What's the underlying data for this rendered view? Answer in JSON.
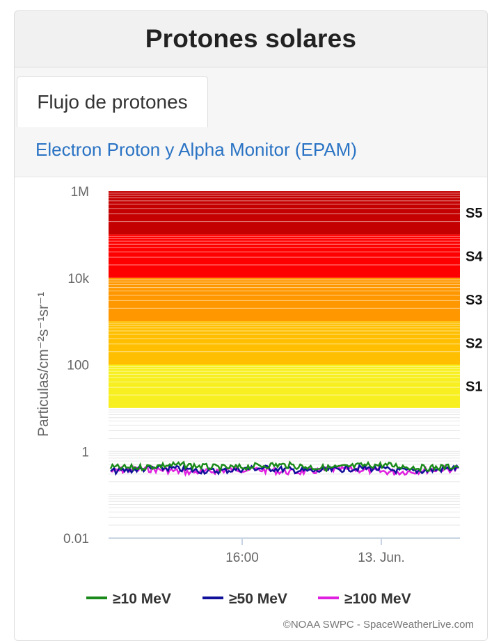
{
  "header": {
    "title": "Protones solares"
  },
  "tabs": [
    {
      "label": "Flujo de protones",
      "active": true
    }
  ],
  "source_link": "Electron Proton y Alpha Monitor (EPAM)",
  "credit": "©NOAA SWPC - SpaceWeatherLive.com",
  "chart_data": {
    "type": "line",
    "yscale": "log",
    "ylim": [
      0.01,
      1000000
    ],
    "yticks": [
      {
        "value": 1000000,
        "label": "1M"
      },
      {
        "value": 10000,
        "label": "10k"
      },
      {
        "value": 100,
        "label": "100"
      },
      {
        "value": 1,
        "label": "1"
      },
      {
        "value": 0.01,
        "label": "0.01"
      }
    ],
    "ylabel": "Particulas/cm⁻²s⁻¹sr⁻¹",
    "xticks": [
      "16:00",
      "13. Jun."
    ],
    "grid": true,
    "legend_position": "bottom",
    "storm_levels": [
      {
        "label": "S5",
        "from": 100000,
        "to": 1000000,
        "color": "#c40000"
      },
      {
        "label": "S4",
        "from": 10000,
        "to": 100000,
        "color": "#ff0000"
      },
      {
        "label": "S3",
        "from": 1000,
        "to": 10000,
        "color": "#ff9800"
      },
      {
        "label": "S2",
        "from": 100,
        "to": 1000,
        "color": "#ffbf00"
      },
      {
        "label": "S1",
        "from": 10,
        "to": 100,
        "color": "#f7ef20"
      }
    ],
    "series": [
      {
        "name": "≥10 MeV",
        "color": "#1a8a1a",
        "approx_level": 0.45
      },
      {
        "name": "≥50 MeV",
        "color": "#10109a",
        "approx_level": 0.38
      },
      {
        "name": "≥100 MeV",
        "color": "#e020e0",
        "approx_level": 0.36
      }
    ]
  }
}
